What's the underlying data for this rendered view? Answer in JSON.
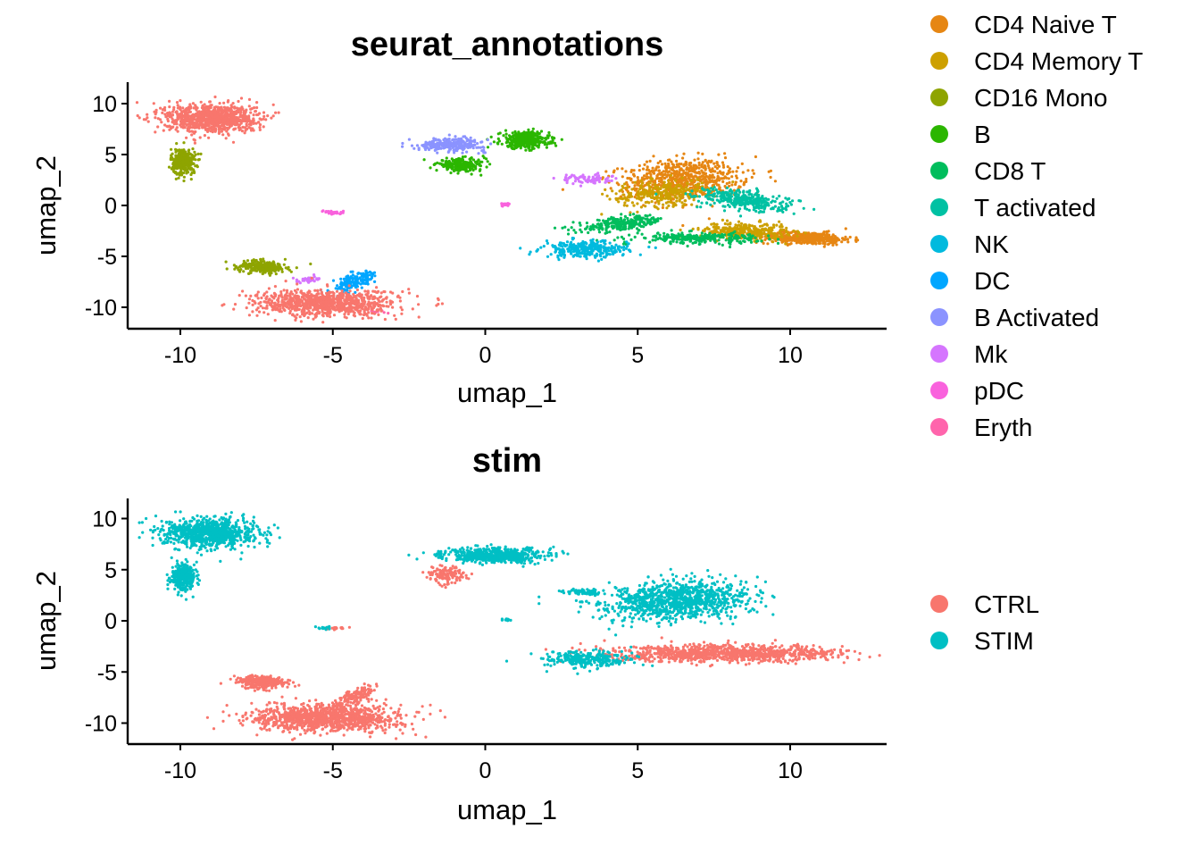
{
  "chart_data": [
    {
      "type": "scatter",
      "title": "seurat_annotations",
      "xlabel": "umap_1",
      "ylabel": "umap_2",
      "xlim": [
        -12,
        13
      ],
      "ylim": [
        -12,
        12
      ],
      "xticks": [
        -10,
        -5,
        0,
        5,
        10
      ],
      "yticks": [
        10,
        5,
        0,
        -5,
        -10
      ],
      "grid": false,
      "legend_position": "right",
      "series": [
        {
          "name": "CD4 Naive T",
          "color": "#E68613",
          "clusters": [
            {
              "cx": 6.5,
              "cy": 2.5,
              "rx": 2.0,
              "ry": 2.0,
              "angle": 20,
              "n": 700
            },
            {
              "cx": 10.5,
              "cy": -3.2,
              "rx": 1.5,
              "ry": 0.6,
              "angle": -5,
              "n": 450
            }
          ]
        },
        {
          "name": "CD4 Memory T",
          "color": "#CDA000",
          "clusters": [
            {
              "cx": 5.8,
              "cy": 1.2,
              "rx": 1.6,
              "ry": 1.2,
              "angle": 20,
              "n": 300
            },
            {
              "cx": 8.5,
              "cy": -2.5,
              "rx": 1.4,
              "ry": 0.8,
              "angle": -5,
              "n": 300
            }
          ]
        },
        {
          "name": "CD16 Mono",
          "color": "#8EA400",
          "clusters": [
            {
              "cx": -9.9,
              "cy": 4.3,
              "rx": 0.4,
              "ry": 1.3,
              "angle": 0,
              "n": 320
            },
            {
              "cx": -7.3,
              "cy": -6.0,
              "rx": 0.8,
              "ry": 0.6,
              "angle": -15,
              "n": 260
            }
          ]
        },
        {
          "name": "B",
          "color": "#2BB600",
          "clusters": [
            {
              "cx": 1.3,
              "cy": 6.4,
              "rx": 0.8,
              "ry": 0.8,
              "angle": 0,
              "n": 380
            },
            {
              "cx": -0.8,
              "cy": 4.0,
              "rx": 0.8,
              "ry": 0.6,
              "angle": 0,
              "n": 220
            }
          ]
        },
        {
          "name": "CD8 T",
          "color": "#00BD5C",
          "clusters": [
            {
              "cx": 4.5,
              "cy": -1.8,
              "rx": 1.5,
              "ry": 0.6,
              "angle": 20,
              "n": 250
            },
            {
              "cx": 7.0,
              "cy": -3.2,
              "rx": 2.0,
              "ry": 0.5,
              "angle": 0,
              "n": 250
            }
          ]
        },
        {
          "name": "T activated",
          "color": "#00C1A3",
          "clusters": [
            {
              "cx": 8.5,
              "cy": 0.5,
              "rx": 1.6,
              "ry": 0.9,
              "angle": -25,
              "n": 350
            }
          ]
        },
        {
          "name": "NK",
          "color": "#00BADE",
          "clusters": [
            {
              "cx": 3.3,
              "cy": -4.3,
              "rx": 1.4,
              "ry": 0.8,
              "angle": 0,
              "n": 300
            }
          ]
        },
        {
          "name": "DC",
          "color": "#00A6FF",
          "clusters": [
            {
              "cx": -4.3,
              "cy": -7.5,
              "rx": 0.5,
              "ry": 1.2,
              "angle": -25,
              "n": 160
            }
          ]
        },
        {
          "name": "B Activated",
          "color": "#8B93FF",
          "clusters": [
            {
              "cx": -1.1,
              "cy": 6.0,
              "rx": 1.1,
              "ry": 0.6,
              "angle": 0,
              "n": 260
            }
          ]
        },
        {
          "name": "Mk",
          "color": "#D575FE",
          "clusters": [
            {
              "cx": 3.3,
              "cy": 2.6,
              "rx": 0.8,
              "ry": 0.5,
              "angle": 0,
              "n": 80
            },
            {
              "cx": -5.8,
              "cy": -7.3,
              "rx": 0.5,
              "ry": 0.3,
              "angle": 0,
              "n": 40
            }
          ]
        },
        {
          "name": "pDC",
          "color": "#F962DD",
          "clusters": [
            {
              "cx": 0.7,
              "cy": 0.1,
              "rx": 0.15,
              "ry": 0.15,
              "angle": 0,
              "n": 20
            },
            {
              "cx": -5.0,
              "cy": -0.7,
              "rx": 0.4,
              "ry": 0.2,
              "angle": 0,
              "n": 30
            }
          ]
        },
        {
          "name": "Eryth",
          "color": "#FF65AC",
          "clusters": [
            {
              "cx": -3.5,
              "cy": -10.5,
              "rx": 0.3,
              "ry": 0.2,
              "angle": 0,
              "n": 10
            }
          ]
        },
        {
          "name": "",
          "color": "#F8766D",
          "clusters": [
            {
              "cx": -9.0,
              "cy": 8.6,
              "rx": 1.5,
              "ry": 1.4,
              "angle": 0,
              "n": 900
            },
            {
              "cx": -5.2,
              "cy": -9.6,
              "rx": 2.3,
              "ry": 1.3,
              "angle": 0,
              "n": 900
            }
          ]
        }
      ],
      "color_order": [
        13,
        0,
        1,
        2,
        3,
        4,
        5,
        6,
        7,
        8,
        9,
        10,
        11
      ]
    },
    {
      "type": "scatter",
      "title": "stim",
      "xlabel": "umap_1",
      "ylabel": "umap_2",
      "xlim": [
        -12,
        13
      ],
      "ylim": [
        -12,
        12
      ],
      "xticks": [
        -10,
        -5,
        0,
        5,
        10
      ],
      "yticks": [
        10,
        5,
        0,
        -5,
        -10
      ],
      "grid": false,
      "legend_position": "right",
      "series": [
        {
          "name": "CTRL",
          "color": "#F8766D",
          "clusters": [
            {
              "cx": -5.2,
              "cy": -9.5,
              "rx": 2.4,
              "ry": 1.3,
              "angle": 0,
              "n": 1100
            },
            {
              "cx": -7.3,
              "cy": -6.0,
              "rx": 0.8,
              "ry": 0.6,
              "angle": -15,
              "n": 300
            },
            {
              "cx": -4.3,
              "cy": -7.4,
              "rx": 0.4,
              "ry": 1.2,
              "angle": -25,
              "n": 150
            },
            {
              "cx": 8.0,
              "cy": -3.2,
              "rx": 3.8,
              "ry": 0.8,
              "angle": 0,
              "n": 1000
            },
            {
              "cx": -1.3,
              "cy": 4.5,
              "rx": 0.6,
              "ry": 0.8,
              "angle": 0,
              "n": 140
            },
            {
              "cx": -4.8,
              "cy": -0.7,
              "rx": 0.3,
              "ry": 0.15,
              "angle": 0,
              "n": 15
            }
          ]
        },
        {
          "name": "STIM",
          "color": "#00BFC4",
          "clusters": [
            {
              "cx": -9.0,
              "cy": 8.6,
              "rx": 1.5,
              "ry": 1.4,
              "angle": 0,
              "n": 900
            },
            {
              "cx": -9.9,
              "cy": 4.3,
              "rx": 0.4,
              "ry": 1.3,
              "angle": 0,
              "n": 320
            },
            {
              "cx": 0.3,
              "cy": 6.4,
              "rx": 1.6,
              "ry": 0.7,
              "angle": 0,
              "n": 600
            },
            {
              "cx": 6.3,
              "cy": 2.0,
              "rx": 2.4,
              "ry": 1.8,
              "angle": 20,
              "n": 1100
            },
            {
              "cx": 3.3,
              "cy": -3.8,
              "rx": 1.4,
              "ry": 0.8,
              "angle": 0,
              "n": 300
            },
            {
              "cx": 3.2,
              "cy": 2.8,
              "rx": 0.7,
              "ry": 0.3,
              "angle": 0,
              "n": 70
            },
            {
              "cx": -5.3,
              "cy": -0.7,
              "rx": 0.3,
              "ry": 0.15,
              "angle": 0,
              "n": 15
            },
            {
              "cx": 0.7,
              "cy": 0.1,
              "rx": 0.12,
              "ry": 0.12,
              "angle": 0,
              "n": 15
            }
          ]
        }
      ]
    }
  ],
  "legend_annotations": [
    {
      "name": "CD4 Naive T",
      "color": "#E68613"
    },
    {
      "name": "CD4 Memory T",
      "color": "#CDA000"
    },
    {
      "name": "CD16 Mono",
      "color": "#8EA400"
    },
    {
      "name": "B",
      "color": "#2BB600"
    },
    {
      "name": "CD8 T",
      "color": "#00BD5C"
    },
    {
      "name": "T activated",
      "color": "#00C1A3"
    },
    {
      "name": "NK",
      "color": "#00BADE"
    },
    {
      "name": "DC",
      "color": "#00A6FF"
    },
    {
      "name": "B Activated",
      "color": "#8B93FF"
    },
    {
      "name": "Mk",
      "color": "#D575FE"
    },
    {
      "name": "pDC",
      "color": "#F962DD"
    },
    {
      "name": "Eryth",
      "color": "#FF65AC"
    }
  ],
  "legend_stim": [
    {
      "name": "CTRL",
      "color": "#F8766D"
    },
    {
      "name": "STIM",
      "color": "#00BFC4"
    }
  ]
}
